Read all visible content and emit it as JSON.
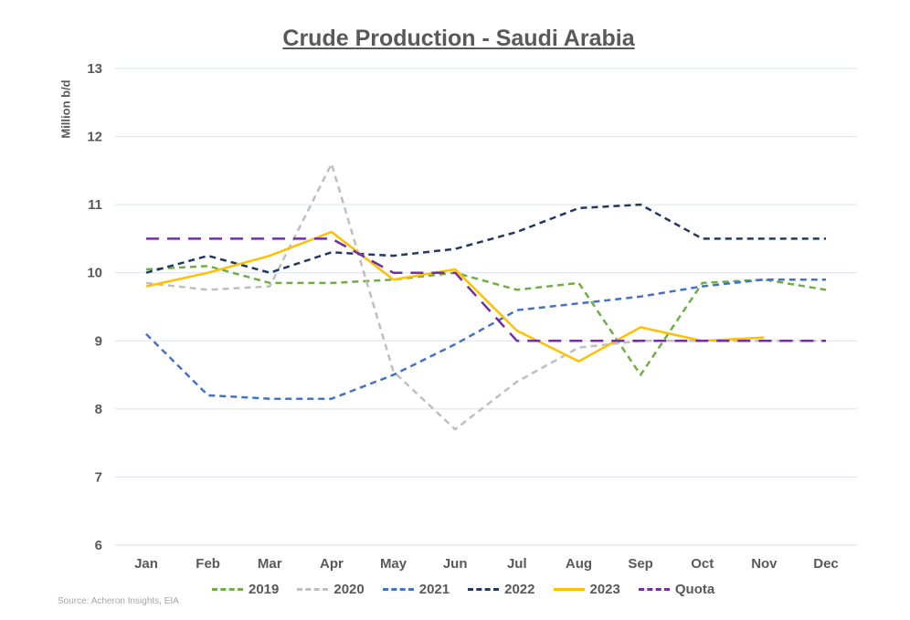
{
  "chart_data": {
    "type": "line",
    "title": "Crude Production - Saudi Arabia",
    "ylabel": "Million b/d",
    "xlabel": "",
    "source": "Source: Acheron Insights, EIA",
    "categories": [
      "Jan",
      "Feb",
      "Mar",
      "Apr",
      "May",
      "Jun",
      "Jul",
      "Aug",
      "Sep",
      "Oct",
      "Nov",
      "Dec"
    ],
    "ylim": [
      6,
      13
    ],
    "yticks": [
      "6",
      "7",
      "8",
      "9",
      "10",
      "11",
      "12",
      "13"
    ],
    "grid": true,
    "legend_position": "bottom",
    "series": [
      {
        "name": "2019",
        "color": "#70ad47",
        "dash": "dashed",
        "values": [
          10.05,
          10.1,
          9.85,
          9.85,
          9.9,
          10.0,
          9.75,
          9.85,
          8.5,
          9.85,
          9.9,
          9.75
        ]
      },
      {
        "name": "2020",
        "color": "#bfbfbf",
        "dash": "dashed",
        "values": [
          9.85,
          9.75,
          9.8,
          11.6,
          8.55,
          7.7,
          8.4,
          8.9,
          9.0,
          9.0,
          9.0,
          9.0
        ]
      },
      {
        "name": "2021",
        "color": "#4472c4",
        "dash": "dashed",
        "values": [
          9.1,
          8.2,
          8.15,
          8.15,
          8.5,
          8.95,
          9.45,
          9.55,
          9.65,
          9.8,
          9.9,
          9.9
        ]
      },
      {
        "name": "2022",
        "color": "#203864",
        "dash": "dashed",
        "values": [
          10.0,
          10.25,
          10.0,
          10.3,
          10.25,
          10.35,
          10.6,
          10.95,
          11.0,
          10.5,
          10.5,
          10.5
        ]
      },
      {
        "name": "2023",
        "color": "#ffc000",
        "dash": "solid",
        "values": [
          9.8,
          10.0,
          10.25,
          10.6,
          9.9,
          10.05,
          9.15,
          8.7,
          9.2,
          9.0,
          9.05,
          null
        ]
      },
      {
        "name": "Quota",
        "color": "#7030a0",
        "dash": "longdash",
        "values": [
          10.5,
          10.5,
          10.5,
          10.5,
          10.0,
          10.0,
          9.0,
          9.0,
          9.0,
          9.0,
          9.0,
          9.0
        ]
      }
    ]
  }
}
